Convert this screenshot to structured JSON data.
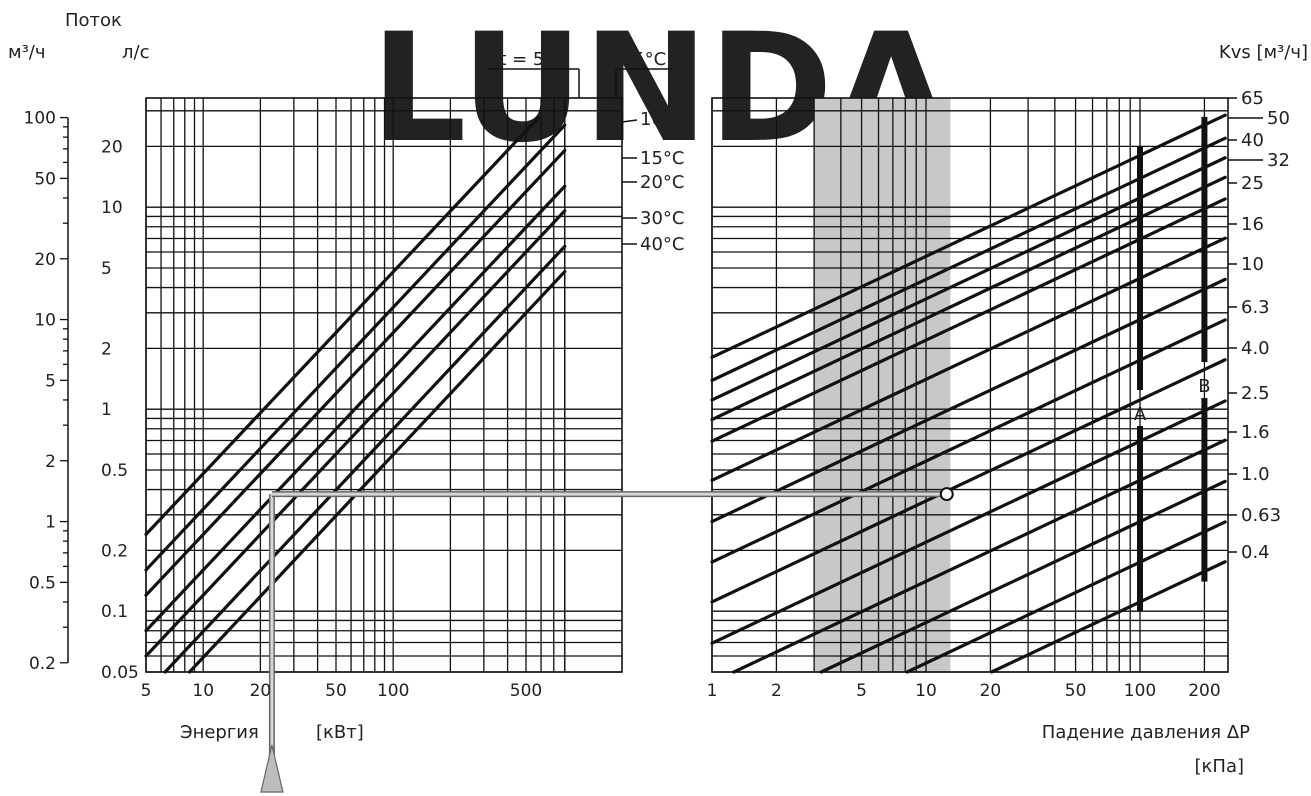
{
  "watermark": "LUNDA",
  "chart_data": [
    {
      "type": "line",
      "axis_left_title": "Поток",
      "unit_m3h": "м³/ч",
      "unit_ls": "л/с",
      "xlabel": "Энергия",
      "xunit": "[кВт]",
      "xscale": "log",
      "xlim": [
        5,
        800
      ],
      "x_ticks": [
        5,
        10,
        20,
        50,
        100,
        500
      ],
      "yscale": "log",
      "ylim": [
        0.05,
        30
      ],
      "y_ticks_ls": [
        0.05,
        0.1,
        0.2,
        0.5,
        1,
        2,
        5,
        10,
        20
      ],
      "y_ticks_m3h": [
        0.2,
        0.5,
        1,
        2,
        5,
        10,
        20,
        50,
        100
      ],
      "series": [
        {
          "name": "Δt = 5°C",
          "x": [
            5,
            580
          ],
          "y": [
            0.24,
            27.7
          ]
        },
        {
          "name": "7.5°C",
          "x": [
            5,
            800
          ],
          "y": [
            0.16,
            25.5
          ]
        },
        {
          "name": "10°C",
          "x": [
            5,
            800
          ],
          "y": [
            0.12,
            19.1
          ]
        },
        {
          "name": "15°C",
          "x": [
            5,
            800
          ],
          "y": [
            0.08,
            12.7
          ]
        },
        {
          "name": "20°C",
          "x": [
            5,
            800
          ],
          "y": [
            0.06,
            9.6
          ]
        },
        {
          "name": "30°C",
          "x": [
            5.8,
            800
          ],
          "y": [
            0.046,
            6.4
          ]
        },
        {
          "name": "40°C",
          "x": [
            7.8,
            800
          ],
          "y": [
            0.046,
            4.8
          ]
        }
      ]
    },
    {
      "type": "line",
      "ylabel": "Kvs [м³/ч]",
      "xlabel": "Падение давления ΔP",
      "xunit": "[кПа]",
      "xscale": "log",
      "xlim": [
        1,
        250
      ],
      "x_ticks": [
        1,
        2,
        5,
        10,
        20,
        50,
        100,
        200
      ],
      "yscale": "log",
      "ylim": [
        0.05,
        30
      ],
      "shaded_region_x": [
        3,
        13
      ],
      "series": [
        {
          "name": "65",
          "kvs": 65
        },
        {
          "name": "50",
          "kvs": 50
        },
        {
          "name": "40",
          "kvs": 40
        },
        {
          "name": "32",
          "kvs": 32
        },
        {
          "name": "25",
          "kvs": 25
        },
        {
          "name": "16",
          "kvs": 16
        },
        {
          "name": "10",
          "kvs": 10
        },
        {
          "name": "6.3",
          "kvs": 6.3
        },
        {
          "name": "4.0",
          "kvs": 4.0
        },
        {
          "name": "2.5",
          "kvs": 2.5
        },
        {
          "name": "1.6",
          "kvs": 1.6
        },
        {
          "name": "1.0",
          "kvs": 1.0
        },
        {
          "name": "0.63",
          "kvs": 0.63
        },
        {
          "name": "0.4",
          "kvs": 0.4
        }
      ],
      "markers": [
        {
          "name": "A",
          "x": 100,
          "y_range": [
            0.1,
            20
          ]
        },
        {
          "name": "B",
          "x": 200,
          "y_range": [
            0.14,
            28
          ]
        }
      ]
    }
  ],
  "example": {
    "energy_kw": 23,
    "flow_ls": 0.38,
    "pressure_drop_kpa": 12.5
  }
}
